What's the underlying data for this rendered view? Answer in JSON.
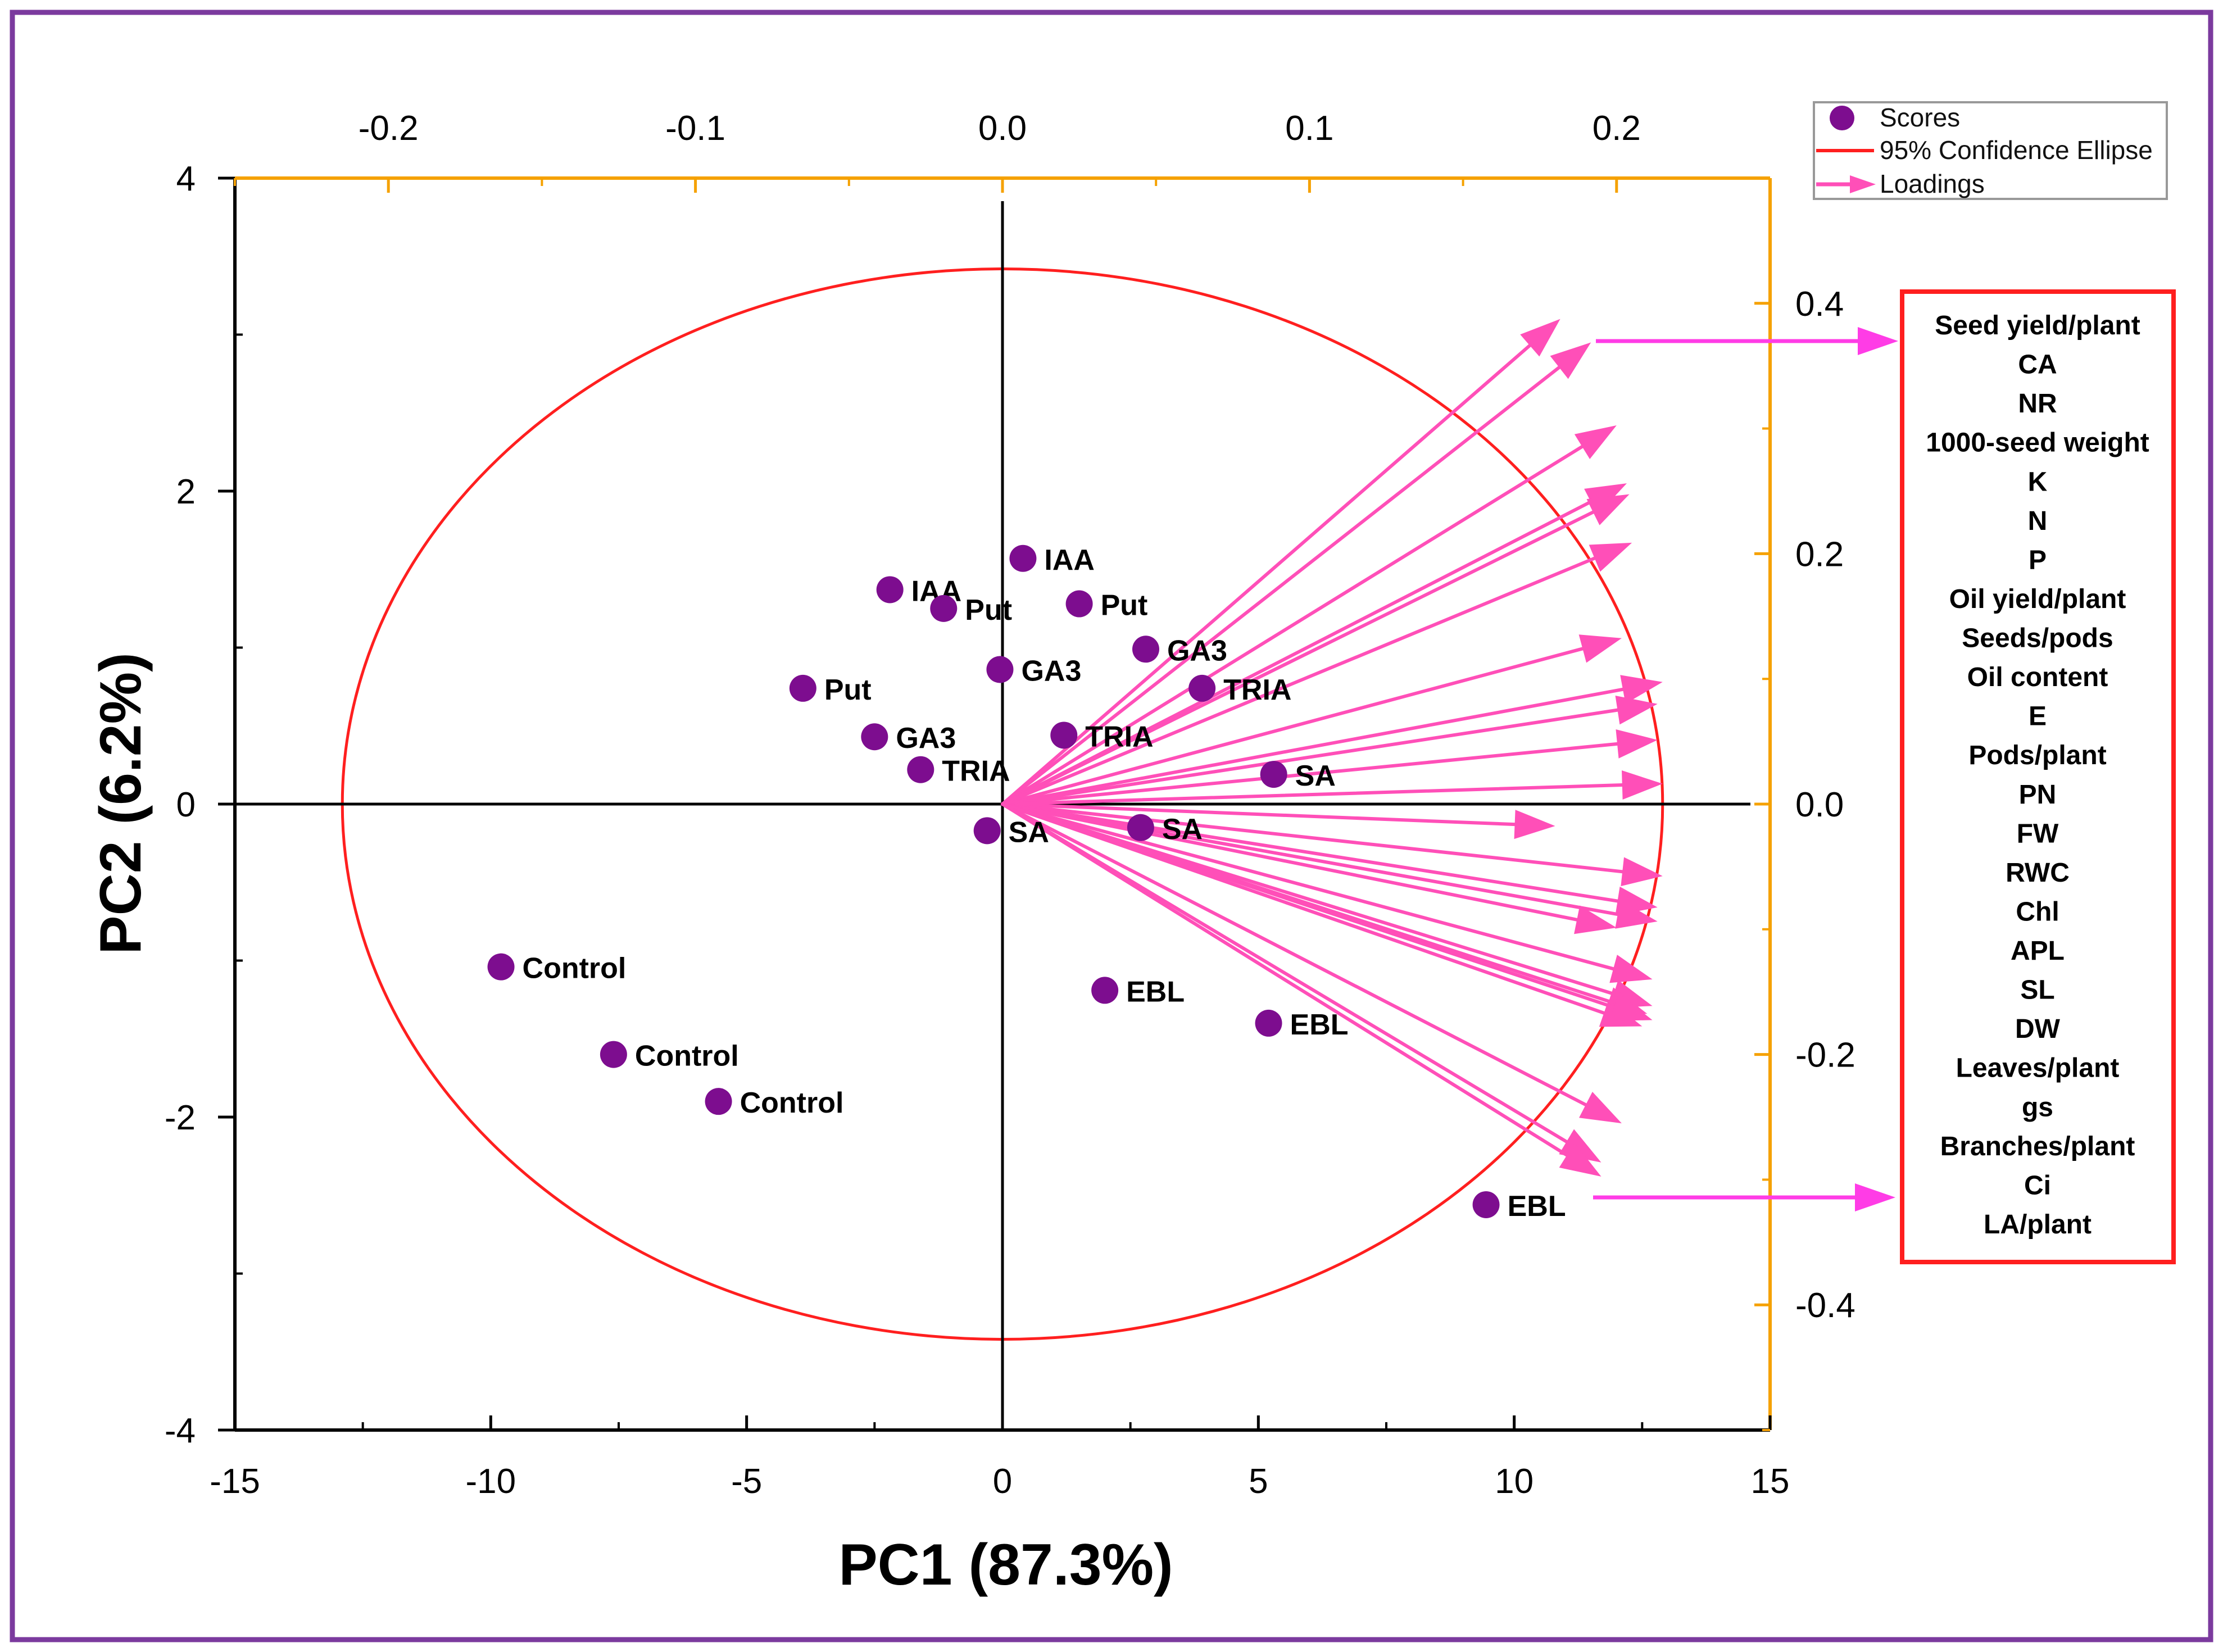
{
  "colors": {
    "frame": "#7b3a9e",
    "axis": "#000000",
    "top_right_axis": "#f5a100",
    "ellipse": "#ff1f1f",
    "loading": "#ff4fb8",
    "point": "#7d0d8f",
    "box": "#ff1f1f",
    "callout": "#ff3ce6"
  },
  "chart_data": {
    "type": "scatter",
    "subtype": "PCA biplot",
    "xlabel": "PC1 (87.3%)",
    "ylabel": "PC2 (6.2%)",
    "x_range": [
      -15,
      15
    ],
    "y_range": [
      -4,
      4
    ],
    "x_ticks": [
      "-15",
      "-10",
      "-5",
      "0",
      "5",
      "10",
      "15"
    ],
    "y_ticks": [
      "4",
      "2",
      "0",
      "-2",
      "-4"
    ],
    "top_axis_range": [
      -0.25,
      0.25
    ],
    "top_ticks": [
      "-0.2",
      "-0.1",
      "0.0",
      "0.1",
      "0.2"
    ],
    "right_axis_range": [
      -0.5,
      0.5
    ],
    "right_ticks": [
      "0.4",
      "0.2",
      "0.0",
      "-0.2",
      "-0.4"
    ],
    "legend": {
      "position": "top-right",
      "items": [
        "Scores",
        "95% Confidence Ellipse",
        "Loadings"
      ]
    },
    "ellipse": {
      "cx": 0,
      "cy": 0,
      "rx": 12.9,
      "ry": 3.42
    },
    "scores": [
      {
        "label": "IAA",
        "x": 0.4,
        "y": 1.57
      },
      {
        "label": "IAA",
        "x": -2.2,
        "y": 1.37
      },
      {
        "label": "Put",
        "x": -1.15,
        "y": 1.25
      },
      {
        "label": "Put",
        "x": 1.5,
        "y": 1.28
      },
      {
        "label": "Put",
        "x": -3.9,
        "y": 0.74
      },
      {
        "label": "GA3",
        "x": -0.05,
        "y": 0.86
      },
      {
        "label": "GA3",
        "x": 2.8,
        "y": 0.99
      },
      {
        "label": "GA3",
        "x": -2.5,
        "y": 0.43
      },
      {
        "label": "TRIA",
        "x": 3.9,
        "y": 0.74
      },
      {
        "label": "TRIA",
        "x": 1.2,
        "y": 0.44
      },
      {
        "label": "TRIA",
        "x": -1.6,
        "y": 0.22
      },
      {
        "label": "SA",
        "x": 5.3,
        "y": 0.19
      },
      {
        "label": "SA",
        "x": -0.3,
        "y": -0.17
      },
      {
        "label": "SA",
        "x": 2.7,
        "y": -0.15
      },
      {
        "label": "EBL",
        "x": 2.0,
        "y": -1.19
      },
      {
        "label": "EBL",
        "x": 5.2,
        "y": -1.4
      },
      {
        "label": "EBL",
        "x": 9.45,
        "y": -2.56
      },
      {
        "label": "Control",
        "x": -9.8,
        "y": -1.04
      },
      {
        "label": "Control",
        "x": -7.6,
        "y": -1.6
      },
      {
        "label": "Control",
        "x": -5.55,
        "y": -1.9
      }
    ],
    "loadings": [
      {
        "x": 10.9,
        "y": 3.1
      },
      {
        "x": 11.5,
        "y": 2.95
      },
      {
        "x": 12.0,
        "y": 2.42
      },
      {
        "x": 12.2,
        "y": 2.05
      },
      {
        "x": 12.25,
        "y": 1.98
      },
      {
        "x": 12.3,
        "y": 1.67
      },
      {
        "x": 12.1,
        "y": 1.06
      },
      {
        "x": 12.9,
        "y": 0.78
      },
      {
        "x": 12.8,
        "y": 0.64
      },
      {
        "x": 12.8,
        "y": 0.41
      },
      {
        "x": 12.9,
        "y": 0.13
      },
      {
        "x": 10.8,
        "y": -0.14
      },
      {
        "x": 12.9,
        "y": -0.46
      },
      {
        "x": 12.8,
        "y": -0.66
      },
      {
        "x": 12.8,
        "y": -0.75
      },
      {
        "x": 12.0,
        "y": -0.79
      },
      {
        "x": 12.7,
        "y": -1.12
      },
      {
        "x": 12.7,
        "y": -1.29
      },
      {
        "x": 12.6,
        "y": -1.34
      },
      {
        "x": 12.5,
        "y": -1.42
      },
      {
        "x": 12.7,
        "y": -1.38
      },
      {
        "x": 12.1,
        "y": -2.04
      },
      {
        "x": 11.7,
        "y": -2.29
      },
      {
        "x": 11.7,
        "y": -2.38
      }
    ],
    "loadings_box": [
      "Seed yield/plant",
      "CA",
      "NR",
      "1000-seed weight",
      "K",
      "N",
      "P",
      "Oil yield/plant",
      "Seeds/pods",
      "Oil content",
      "E",
      "Pods/plant",
      "PN",
      "FW",
      "RWC",
      "Chl",
      "APL",
      "SL",
      "DW",
      "Leaves/plant",
      "gs",
      "Branches/plant",
      "Ci",
      "LA/plant"
    ]
  }
}
